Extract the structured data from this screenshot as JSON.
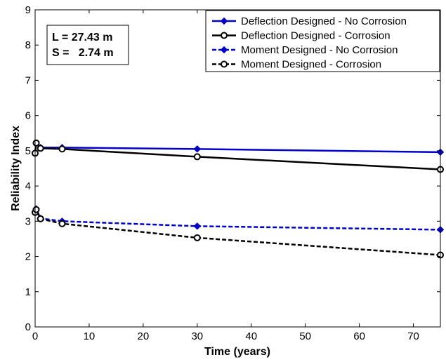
{
  "chart_data": {
    "type": "line",
    "xlabel": "Time (years)",
    "ylabel": "Reliability Index",
    "xlim": [
      0,
      75
    ],
    "ylim": [
      0,
      9
    ],
    "xticks": [
      0,
      10,
      20,
      30,
      40,
      50,
      60,
      70
    ],
    "yticks": [
      0,
      1,
      2,
      3,
      4,
      5,
      6,
      7,
      8,
      9
    ],
    "grid": false,
    "legend_position": "top-right",
    "annotations": [
      "L = 27.43 m",
      "S =   2.74 m"
    ],
    "series": [
      {
        "name": "Deflection Designed - No Corrosion",
        "color": "#0000cc",
        "linestyle": "solid",
        "marker": "diamond",
        "points": [
          [
            0,
            4.93
          ],
          [
            0.2,
            5.22
          ],
          [
            1,
            5.09
          ],
          [
            5,
            5.09
          ],
          [
            30,
            5.05
          ],
          [
            75,
            4.96
          ]
        ]
      },
      {
        "name": "Deflection Designed - Corrosion",
        "color": "#000000",
        "linestyle": "solid",
        "marker": "circle",
        "points": [
          [
            0,
            4.93
          ],
          [
            0.2,
            5.22
          ],
          [
            1,
            5.07
          ],
          [
            5,
            5.05
          ],
          [
            30,
            4.83
          ],
          [
            75,
            4.47
          ]
        ]
      },
      {
        "name": "Moment Designed - No Corrosion",
        "color": "#0000cc",
        "linestyle": "dashed",
        "marker": "diamond",
        "points": [
          [
            0,
            3.25
          ],
          [
            0.2,
            3.35
          ],
          [
            1,
            3.08
          ],
          [
            5,
            3.0
          ],
          [
            30,
            2.86
          ],
          [
            75,
            2.76
          ]
        ]
      },
      {
        "name": "Moment Designed - Corrosion",
        "color": "#000000",
        "linestyle": "dashed",
        "marker": "circle",
        "points": [
          [
            0,
            3.25
          ],
          [
            0.2,
            3.33
          ],
          [
            1,
            3.07
          ],
          [
            5,
            2.93
          ],
          [
            30,
            2.53
          ],
          [
            75,
            2.04
          ]
        ]
      }
    ]
  }
}
